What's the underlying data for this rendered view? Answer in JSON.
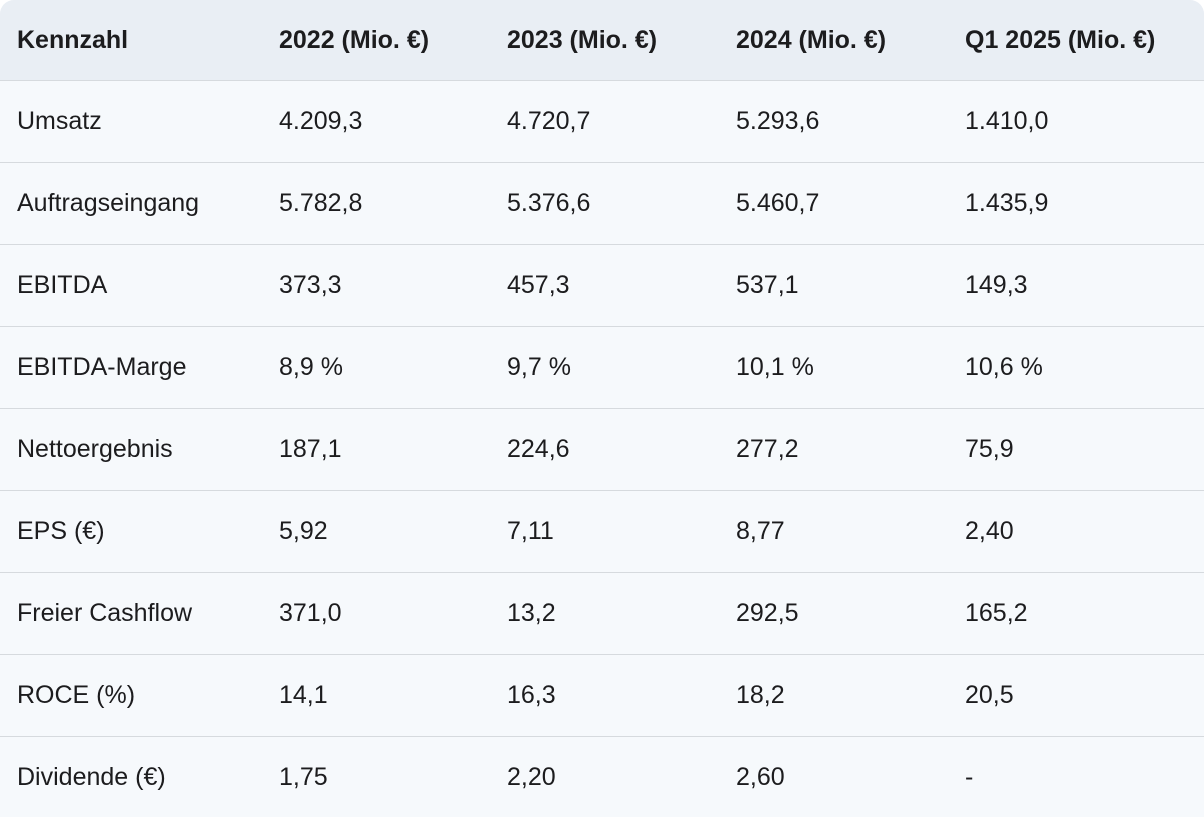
{
  "table": {
    "header": [
      "Kennzahl",
      "2022 (Mio. €)",
      "2023 (Mio. €)",
      "2024 (Mio. €)",
      "Q1 2025 (Mio. €)"
    ],
    "rows": [
      [
        "Umsatz",
        "4.209,3",
        "4.720,7",
        "5.293,6",
        "1.410,0"
      ],
      [
        "Auftragseingang",
        "5.782,8",
        "5.376,6",
        "5.460,7",
        "1.435,9"
      ],
      [
        "EBITDA",
        "373,3",
        "457,3",
        "537,1",
        "149,3"
      ],
      [
        "EBITDA-Marge",
        "8,9 %",
        "9,7 %",
        "10,1 %",
        "10,6 %"
      ],
      [
        "Nettoergebnis",
        "187,1",
        "224,6",
        "277,2",
        "75,9"
      ],
      [
        "EPS (€)",
        "5,92",
        "7,11",
        "8,77",
        "2,40"
      ],
      [
        "Freier Cashflow",
        "371,0",
        "13,2",
        "292,5",
        "165,2"
      ],
      [
        "ROCE (%)",
        "14,1",
        "16,3",
        "18,2",
        "20,5"
      ],
      [
        "Dividende (€)",
        "1,75",
        "2,20",
        "2,60",
        "-"
      ]
    ]
  }
}
